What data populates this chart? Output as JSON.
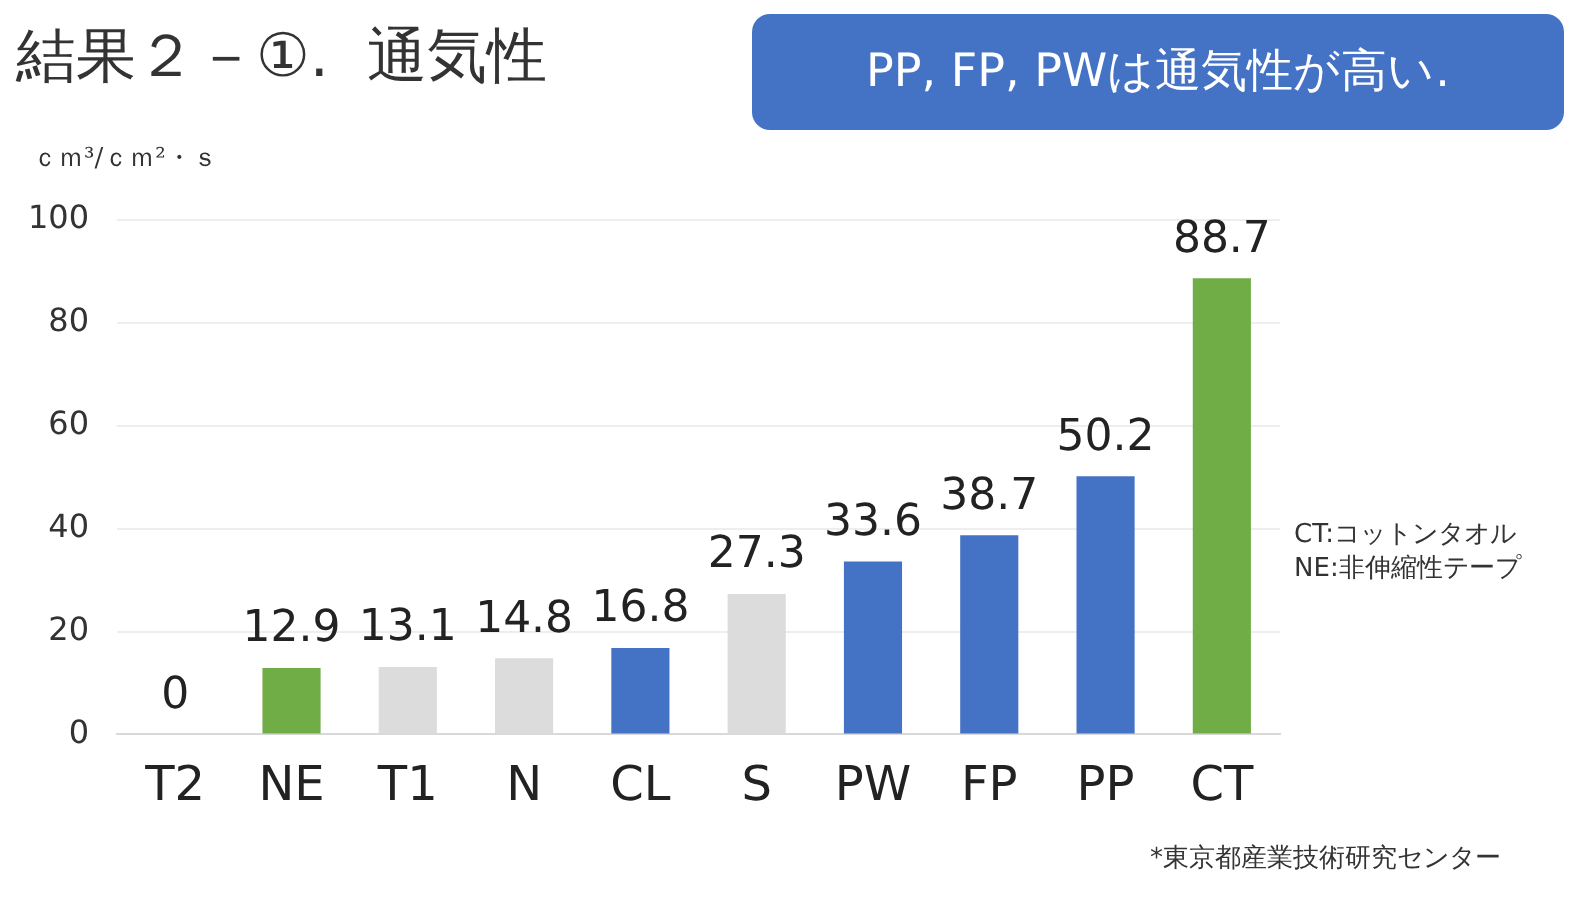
{
  "chart_data": {
    "type": "bar",
    "title": "結果２－①.  通気性",
    "ylabel": "ｃｍ³/ｃｍ²・ｓ",
    "categories": [
      "T2",
      "NE",
      "T1",
      "N",
      "CL",
      "S",
      "PW",
      "FP",
      "PP",
      "CT"
    ],
    "values": [
      0,
      12.9,
      13.1,
      14.8,
      16.8,
      27.3,
      33.6,
      38.7,
      50.2,
      88.7
    ],
    "colors": [
      "#4472c4",
      "#70ad47",
      "#dcdcdc",
      "#dcdcdc",
      "#4472c4",
      "#dcdcdc",
      "#4472c4",
      "#4472c4",
      "#4472c4",
      "#70ad47"
    ],
    "ylim": [
      0,
      100
    ],
    "yticks": [
      0,
      20,
      40,
      60,
      80,
      100
    ],
    "grid": "y",
    "legend": false,
    "data_labels": true,
    "annotations": [
      "PP, FP, PWは通気性が高い.",
      "CT:コットンタオル",
      "NE:非伸縮性テープ",
      "*東京都産業技術研究センター"
    ]
  }
}
